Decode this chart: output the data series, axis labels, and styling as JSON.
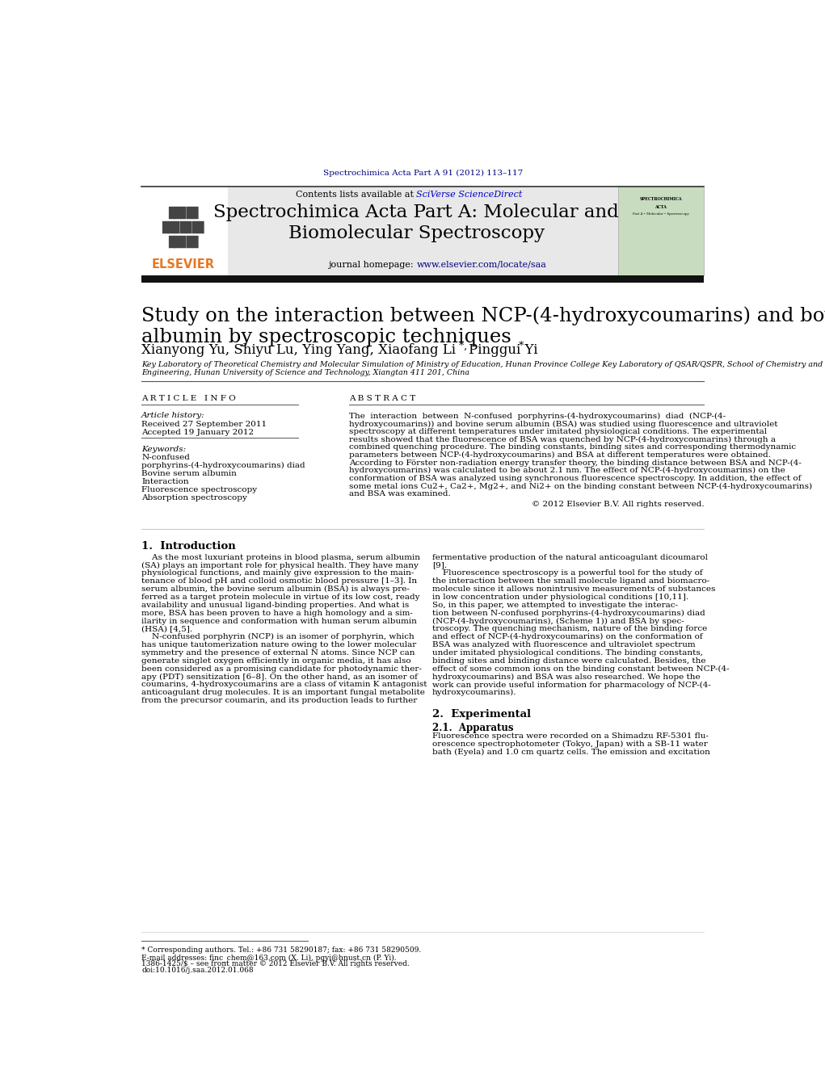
{
  "page_title": "Spectrochimica Acta Part A 91 (2012) 113–117",
  "journal_name": "Spectrochimica Acta Part A: Molecular and\nBiomolecular Spectroscopy",
  "contents_text": "Contents lists available at SciVerse ScienceDirect",
  "journal_homepage": "journal homepage: www.elsevier.com/locate/saa",
  "paper_title": "Study on the interaction between NCP-(4-hydroxycoumarins) and bovine serum\nalbumin by spectroscopic techniques",
  "authors": "Xianyong Yu, Shiyu Lu, Ying Yang, Xiaofang Li*, Pinggui Yi*",
  "affiliation": "Key Laboratory of Theoretical Chemistry and Molecular Simulation of Ministry of Education, Hunan Province College Key Laboratory of QSAR/QSPR, School of Chemistry and Chemical\nEngineering, Hunan University of Science and Technology, Xiangtan 411 201, China",
  "article_info_header": "A R T I C L E   I N F O",
  "abstract_header": "A B S T R A C T",
  "article_history_label": "Article history:",
  "received": "Received 27 September 2011",
  "accepted": "Accepted 19 January 2012",
  "keywords_label": "Keywords:",
  "keywords": [
    "N-confused",
    "porphyrins-(4-hydroxycoumarins) diad",
    "Bovine serum albumin",
    "Interaction",
    "Fluorescence spectroscopy",
    "Absorption spectroscopy"
  ],
  "abstract_lines": [
    "The  interaction  between  N-confused  porphyrins-(4-hydroxycoumarins)  diad  (NCP-(4-",
    "hydroxycoumarins)) and bovine serum albumin (BSA) was studied using fluorescence and ultraviolet",
    "spectroscopy at different temperatures under imitated physiological conditions. The experimental",
    "results showed that the fluorescence of BSA was quenched by NCP-(4-hydroxycoumarins) through a",
    "combined quenching procedure. The binding constants, binding sites and corresponding thermodynamic",
    "parameters between NCP-(4-hydroxycoumarins) and BSA at different temperatures were obtained.",
    "According to Förster non-radiation energy transfer theory, the binding distance between BSA and NCP-(4-",
    "hydroxycoumarins) was calculated to be about 2.1 nm. The effect of NCP-(4-hydroxycoumarins) on the",
    "conformation of BSA was analyzed using synchronous fluorescence spectroscopy. In addition, the effect of",
    "some metal ions Cu2+, Ca2+, Mg2+, and Ni2+ on the binding constant between NCP-(4-hydroxycoumarins)",
    "and BSA was examined."
  ],
  "copyright_text": "© 2012 Elsevier B.V. All rights reserved.",
  "section1_title": "1.  Introduction",
  "col1_lines": [
    "    As the most luxuriant proteins in blood plasma, serum albumin",
    "(SA) plays an important role for physical health. They have many",
    "physiological functions, and mainly give expression to the main-",
    "tenance of blood pH and colloid osmotic blood pressure [1–3]. In",
    "serum albumin, the bovine serum albumin (BSA) is always pre-",
    "ferred as a target protein molecule in virtue of its low cost, ready",
    "availability and unusual ligand-binding properties. And what is",
    "more, BSA has been proven to have a high homology and a sim-",
    "ilarity in sequence and conformation with human serum albumin",
    "(HSA) [4,5].",
    "    N-confused porphyrin (NCP) is an isomer of porphyrin, which",
    "has unique tautomerization nature owing to the lower molecular",
    "symmetry and the presence of external N atoms. Since NCP can",
    "generate singlet oxygen efficiently in organic media, it has also",
    "been considered as a promising candidate for photodynamic ther-",
    "apy (PDT) sensitization [6–8]. On the other hand, as an isomer of",
    "coumarins, 4-hydroxycoumarins are a class of vitamin K antagonist",
    "anticoagulant drug molecules. It is an important fungal metabolite",
    "from the precursor coumarin, and its production leads to further"
  ],
  "col2_lines": [
    "fermentative production of the natural anticoagulant dicoumarol",
    "[9].",
    "    Fluorescence spectroscopy is a powerful tool for the study of",
    "the interaction between the small molecule ligand and biomacro-",
    "molecule since it allows nonintrusive measurements of substances",
    "in low concentration under physiological conditions [10,11].",
    "So, in this paper, we attempted to investigate the interac-",
    "tion between N-confused porphyrins-(4-hydroxycoumarins) diad",
    "(NCP-(4-hydroxycoumarins), (Scheme 1)) and BSA by spec-",
    "troscopy. The quenching mechanism, nature of the binding force",
    "and effect of NCP-(4-hydroxycoumarins) on the conformation of",
    "BSA was analyzed with fluorescence and ultraviolet spectrum",
    "under imitated physiological conditions. The binding constants,",
    "binding sites and binding distance were calculated. Besides, the",
    "effect of some common ions on the binding constant between NCP-(4-",
    "hydroxycoumarins) and BSA was also researched. We hope the",
    "work can provide useful information for pharmacology of NCP-(4-",
    "hydroxycoumarins)."
  ],
  "section2_title": "2.  Experimental",
  "section21_title": "2.1.  Apparatus",
  "section21_lines": [
    "Fluorescence spectra were recorded on a Shimadzu RF-5301 flu-",
    "orescence spectrophotometer (Tokyo, Japan) with a SB-11 water",
    "bath (Eyela) and 1.0 cm quartz cells. The emission and excitation"
  ],
  "footnote_star": "* Corresponding authors. Tel.: +86 731 58290187; fax: +86 731 58290509.",
  "footnote_email": "E-mail addresses: finc_chem@163.com (X. Li), pgyi@hnust.cn (P. Yi).",
  "footnote_issn": "1386-1425/$ – see front matter © 2012 Elsevier B.V. All rights reserved.",
  "footnote_doi": "doi:10.1016/j.saa.2012.01.068",
  "bg_color": "#ffffff",
  "header_bg": "#e8e8e8",
  "dark_bar_color": "#111111",
  "elsevier_color": "#e87722",
  "link_color": "#000080",
  "sciverse_color": "#0000cc",
  "text_color": "#000000"
}
